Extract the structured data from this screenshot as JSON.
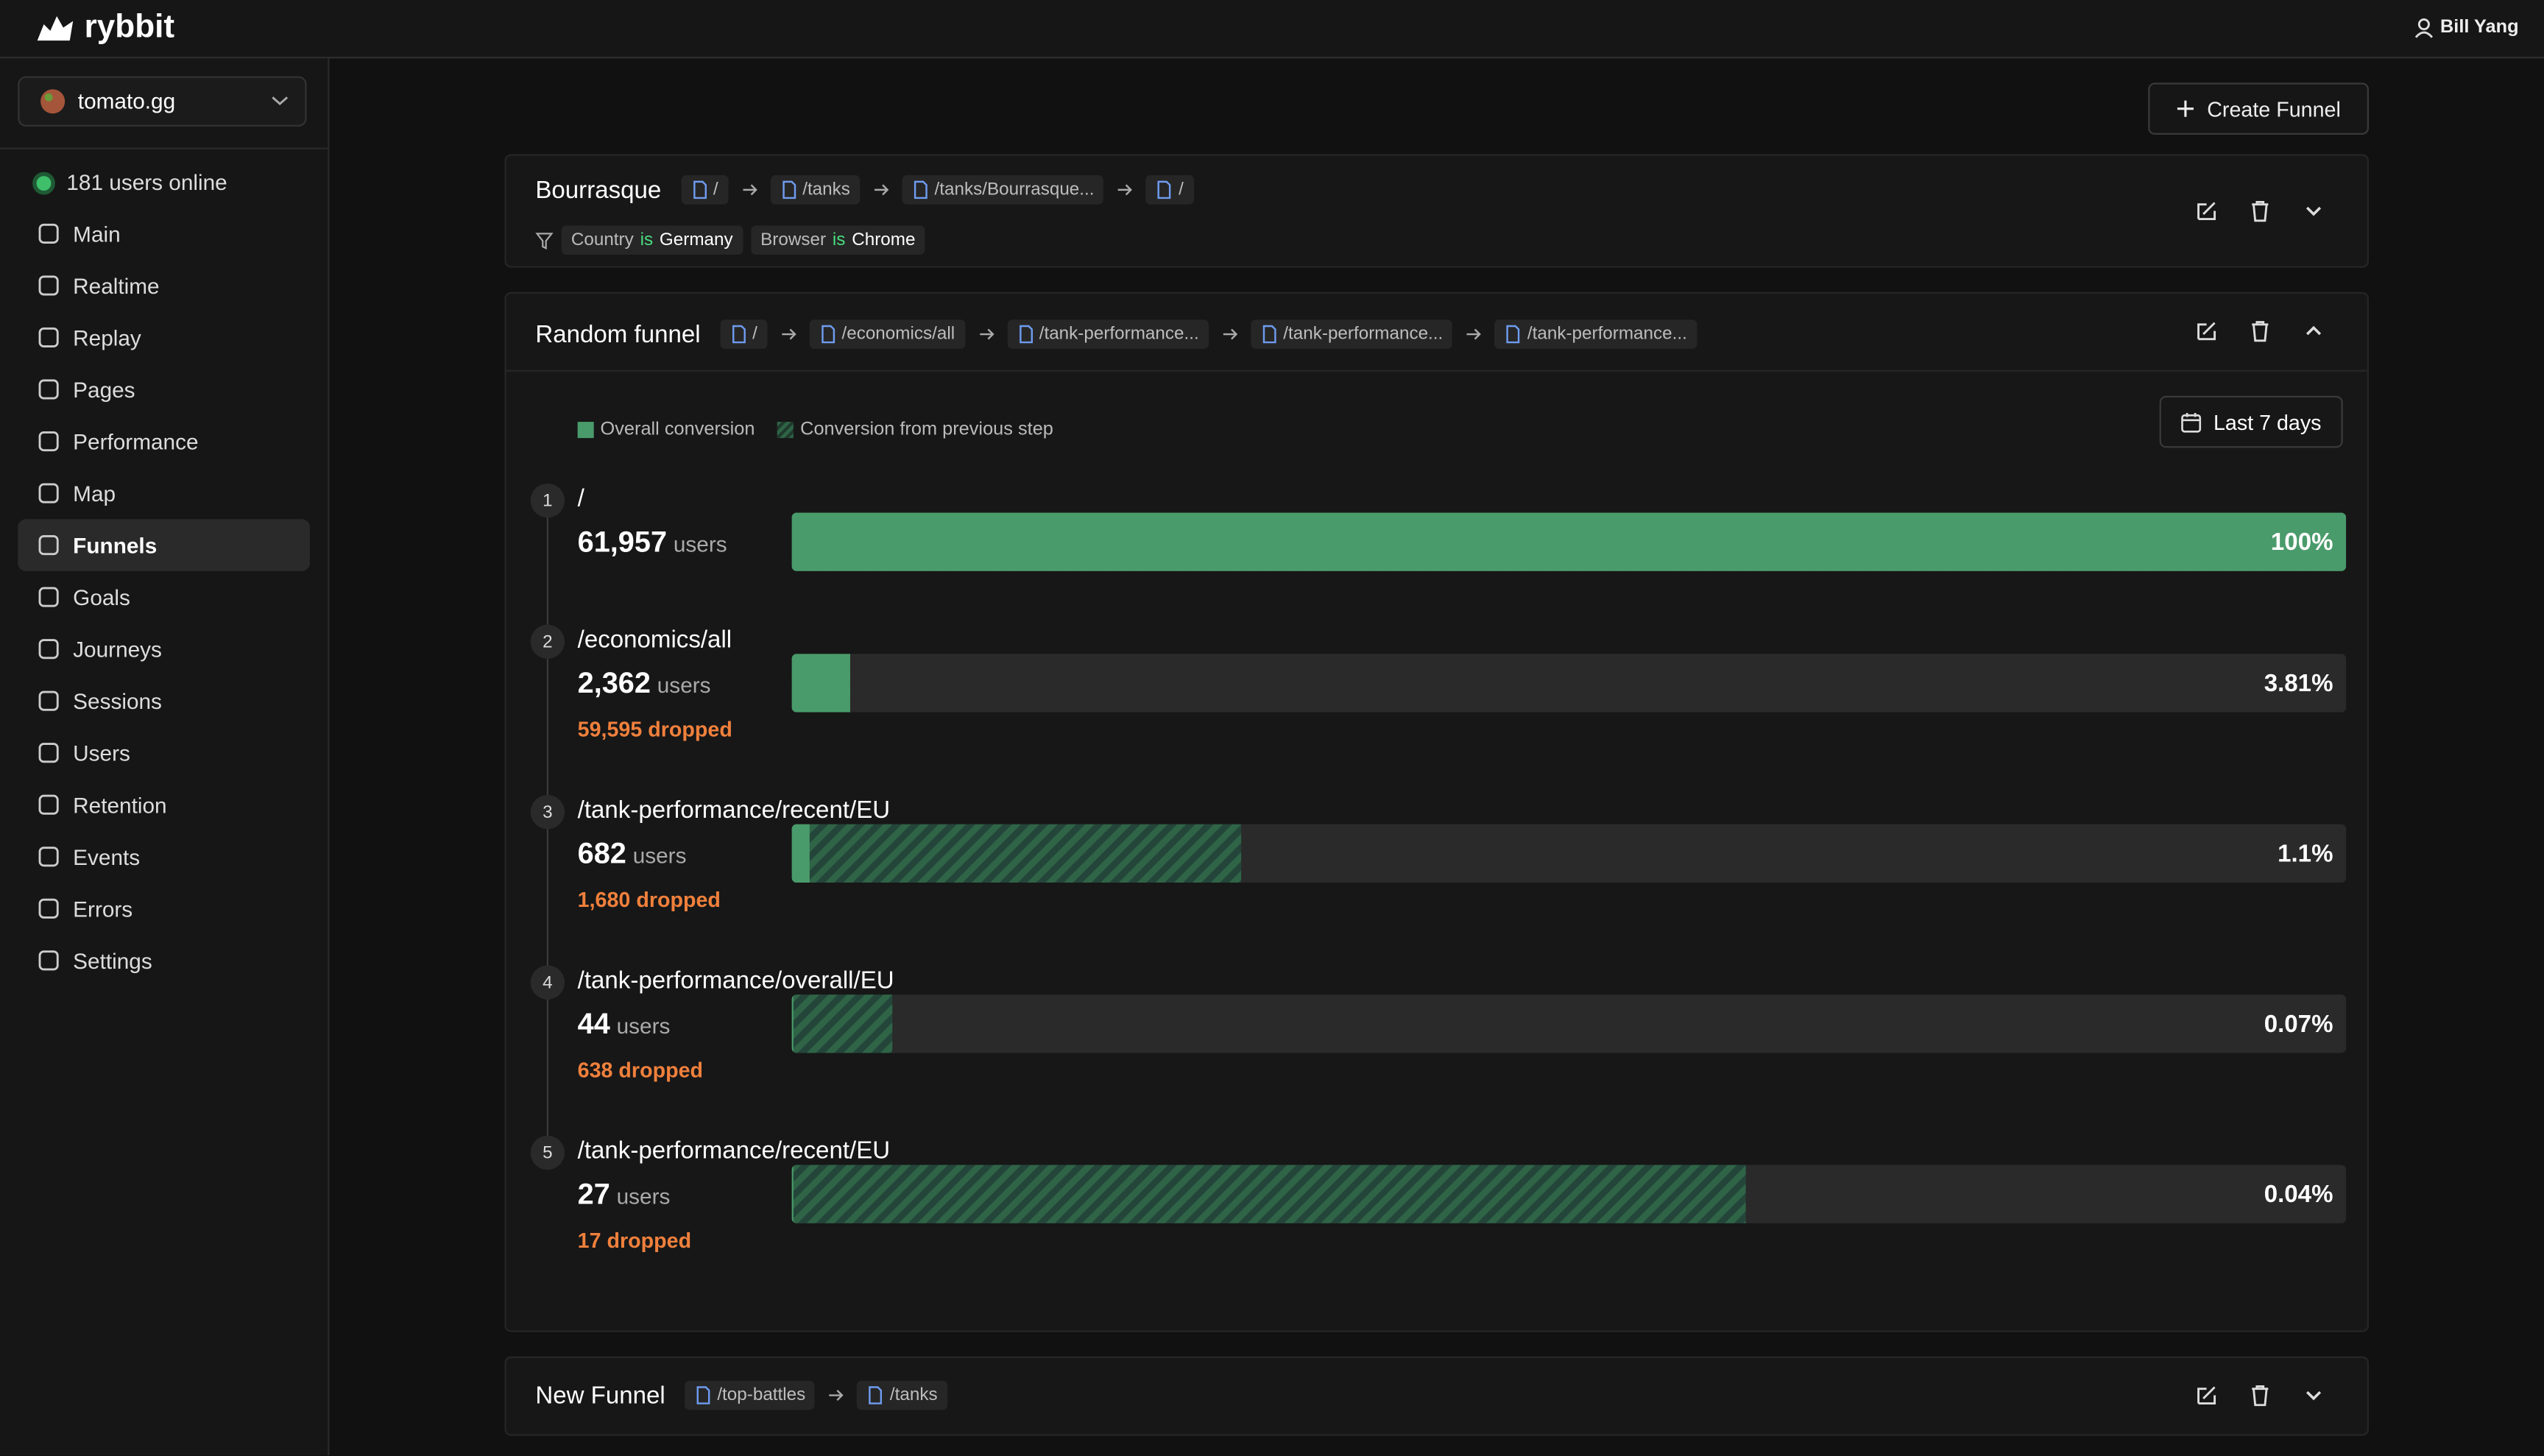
{
  "header": {
    "brand": "rybbit",
    "user": "Bill Yang"
  },
  "sidebar": {
    "site": "tomato.gg",
    "online": "181 users online",
    "nav": [
      "Main",
      "Realtime",
      "Replay",
      "Pages",
      "Performance",
      "Map",
      "Funnels",
      "Goals",
      "Journeys",
      "Sessions",
      "Users",
      "Retention",
      "Events",
      "Errors",
      "Settings"
    ],
    "active": 6
  },
  "create_button": "Create Funnel",
  "funnels": [
    {
      "name": "Bourrasque",
      "steps": [
        "/",
        "/tanks",
        "/tanks/Bourrasque...",
        "/"
      ],
      "filters": [
        {
          "field": "Country",
          "op": "is",
          "value": "Germany"
        },
        {
          "field": "Browser",
          "op": "is",
          "value": "Chrome"
        }
      ]
    },
    {
      "name": "Random funnel",
      "steps": [
        "/",
        "/economics/all",
        "/tank-performance...",
        "/tank-performance...",
        "/tank-performance..."
      ]
    },
    {
      "name": "New Funnel",
      "steps": [
        "/top-battles",
        "/tanks"
      ]
    }
  ],
  "detail": {
    "legend": [
      "Overall conversion",
      "Conversion from previous step"
    ],
    "date_range": "Last 7 days",
    "users_unit": "users",
    "rows": [
      {
        "number": 1,
        "path": "/",
        "users": "61,957",
        "overall": {
          "value": 100,
          "label": "100%"
        },
        "from_previous": 100
      },
      {
        "number": 2,
        "path": "/economics/all",
        "users": "2,362",
        "dropped": "59,595 dropped",
        "overall": {
          "value": 3.81,
          "label": "3.81%"
        },
        "from_previous": 3.81
      },
      {
        "number": 3,
        "path": "/tank-performance/recent/EU",
        "users": "682",
        "dropped": "1,680 dropped",
        "overall": {
          "value": 1.1,
          "label": "1.1%"
        },
        "from_previous": 28.9
      },
      {
        "number": 4,
        "path": "/tank-performance/overall/EU",
        "users": "44",
        "dropped": "638 dropped",
        "overall": {
          "value": 0.07,
          "label": "0.07%"
        },
        "from_previous": 6.5
      },
      {
        "number": 5,
        "path": "/tank-performance/recent/EU",
        "users": "27",
        "dropped": "17 dropped",
        "overall": {
          "value": 0.04,
          "label": "0.04%"
        },
        "from_previous": 61.4
      }
    ]
  }
}
